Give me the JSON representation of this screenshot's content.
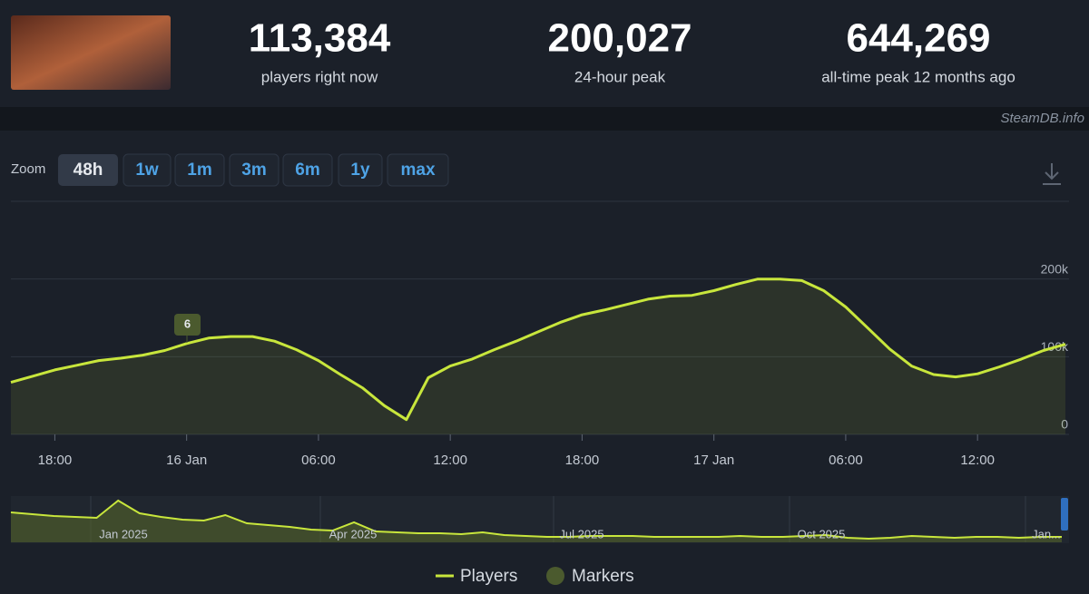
{
  "header": {
    "stats": [
      {
        "value": "113,384",
        "label": "players right now"
      },
      {
        "value": "200,027",
        "label": "24-hour peak"
      },
      {
        "value": "644,269",
        "label": "all-time peak 12 months ago"
      }
    ],
    "watermark": "SteamDB.info"
  },
  "zoom": {
    "label": "Zoom",
    "buttons": [
      "48h",
      "1w",
      "1m",
      "3m",
      "6m",
      "1y",
      "max"
    ],
    "active": "48h"
  },
  "chart_data": {
    "type": "line",
    "categories": [
      null,
      null,
      "18:00",
      null,
      null,
      null,
      null,
      null,
      "16 Jan",
      null,
      null,
      null,
      null,
      null,
      "06:00",
      null,
      null,
      null,
      null,
      null,
      "12:00",
      null,
      null,
      null,
      null,
      null,
      "18:00",
      null,
      null,
      null,
      null,
      null,
      "17 Jan",
      null,
      null,
      null,
      null,
      null,
      "06:00",
      null,
      null,
      null,
      null,
      null,
      "12:00",
      null,
      null,
      null,
      null
    ],
    "series": [
      {
        "name": "Players",
        "color": "#c8e63c",
        "values": [
          67000,
          75000,
          83000,
          89000,
          95000,
          98000,
          102000,
          108000,
          117000,
          124000,
          126000,
          126000,
          120000,
          109000,
          95000,
          77000,
          60000,
          37000,
          19000,
          73000,
          88000,
          97000,
          109000,
          120000,
          132000,
          144000,
          154000,
          160000,
          167000,
          174000,
          178000,
          179000,
          185000,
          193000,
          200000,
          200000,
          198000,
          185000,
          164000,
          137000,
          110000,
          88000,
          77000,
          74000,
          78000,
          87000,
          97000,
          108000,
          116000
        ]
      }
    ],
    "markers": {
      "name": "Markers",
      "color": "#4b5a2e",
      "label": "6"
    },
    "ylim": [
      0,
      300000
    ],
    "yticks": [
      0,
      {
        "value": 100000,
        "label": "100k"
      },
      {
        "value": 200000,
        "label": "200k"
      }
    ],
    "grid": true
  },
  "navigator": {
    "labels": [
      "Jan 2025",
      "Apr 2025",
      "Jul 2025",
      "Oct 2025",
      "Jan..."
    ],
    "values": [
      462000,
      434000,
      406000,
      392000,
      378000,
      644000,
      448000,
      392000,
      350000,
      336000,
      420000,
      294000,
      266000,
      238000,
      196000,
      182000,
      308000,
      168000,
      154000,
      140000,
      140000,
      126000,
      154000,
      112000,
      98000,
      84000,
      84000,
      98000,
      98000,
      98000,
      84000,
      84000,
      84000,
      84000,
      98000,
      84000,
      84000,
      98000,
      112000,
      70000,
      56000,
      70000,
      98000,
      84000,
      70000,
      84000,
      84000,
      70000,
      84000,
      84000
    ]
  }
}
